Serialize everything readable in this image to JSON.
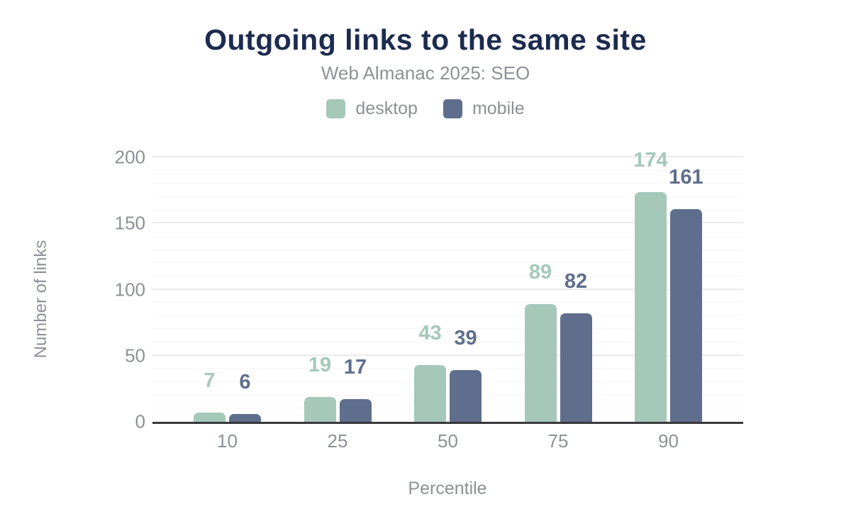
{
  "title": "Outgoing links to the same site",
  "subtitle": "Web Almanac 2025: SEO",
  "colors": {
    "background": "#ffffff",
    "title_text": "#1c2b4e",
    "muted_text": "#8d9196",
    "axis_line": "#39393b",
    "grid_major": "#eaeaea",
    "grid_minor": "#f5f5f5",
    "desktop": "#a5c8b9",
    "mobile": "#5f6e8c"
  },
  "chart_data": {
    "type": "bar",
    "title": "Outgoing links to the same site",
    "subtitle": "Web Almanac 2025: SEO",
    "categories": [
      "10",
      "25",
      "50",
      "75",
      "90"
    ],
    "series": [
      {
        "name": "desktop",
        "color": "#a5c8b9",
        "values": [
          7,
          19,
          43,
          89,
          174
        ]
      },
      {
        "name": "mobile",
        "color": "#5f6e8c",
        "values": [
          6,
          17,
          39,
          82,
          161
        ]
      }
    ],
    "xlabel": "Percentile",
    "ylabel": "Number of links",
    "ylim": [
      0,
      200
    ],
    "yticks": [
      0,
      50,
      100,
      150,
      200
    ],
    "minor_grid_step": 10,
    "grid": true,
    "legend_position": "top",
    "data_labels": true
  }
}
